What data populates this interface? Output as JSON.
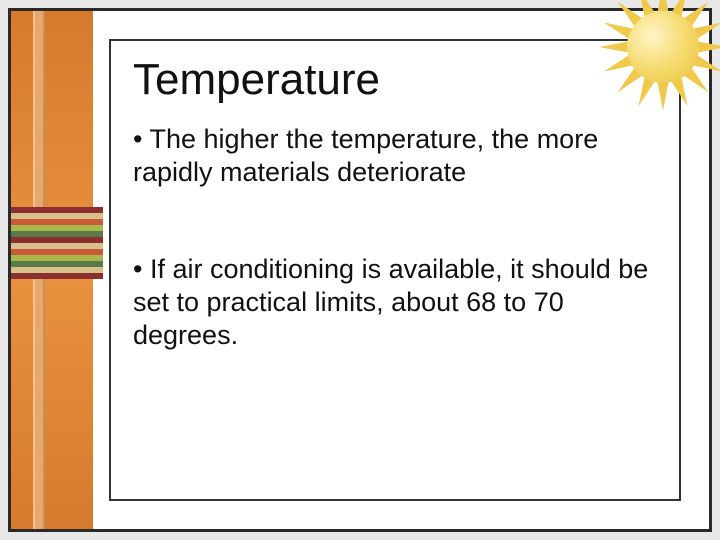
{
  "slide": {
    "title": "Temperature",
    "bullets": [
      "• The higher the temperature, the more rapidly materials deteriorate",
      "• If air conditioning is available, it should be set to practical limits, about 68 to 70 degrees."
    ]
  },
  "theme": {
    "background": "#e8e8e8",
    "frame_border": "#2a2a2a",
    "inner_border": "#333333",
    "content_bg": "#ffffff",
    "sidebar_gradient": [
      "#d67a2e",
      "#e8923f",
      "#d67a2e"
    ],
    "sidebar_bar": "#e9a86b",
    "title_fontsize": 44,
    "body_fontsize": 27,
    "text_color": "#111111",
    "font_family": "Arial",
    "stripes": [
      "#8b2f2f",
      "#d8c08a",
      "#c85a3a",
      "#a8b84a",
      "#5a7a4a",
      "#8b2f2f",
      "#d8c08a",
      "#c85a3a",
      "#a8b84a",
      "#5a7a4a",
      "#d8c08a",
      "#8b2f2f"
    ],
    "sun": {
      "core_color": "#f5d96b",
      "ray_color": "#f0c84a",
      "highlight": "#fff5c8"
    }
  }
}
